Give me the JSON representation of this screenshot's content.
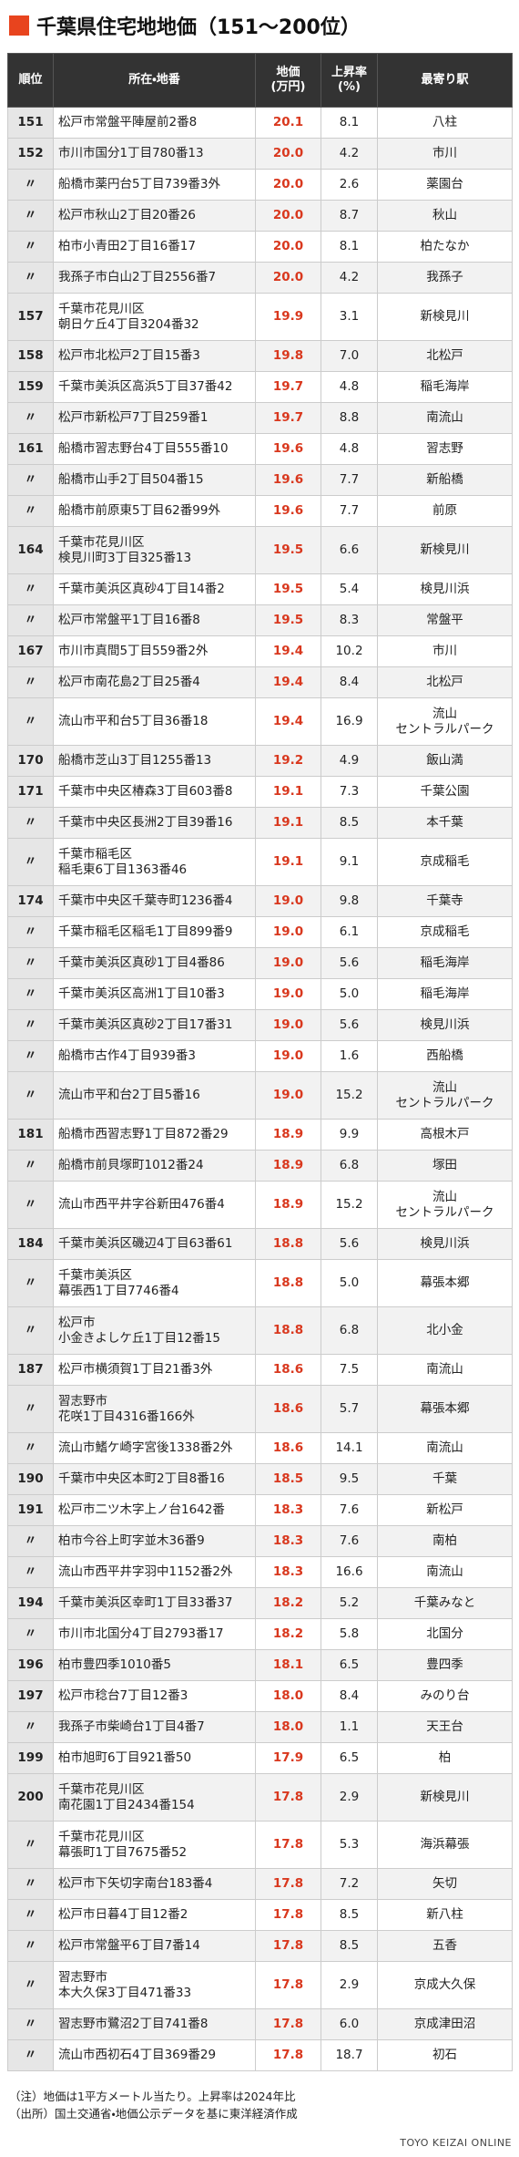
{
  "header": {
    "title": "千葉県住宅地地価（151〜200位）"
  },
  "table": {
    "columns": [
      "順位",
      "所在・地番",
      "地価\n(万円)",
      "上昇率\n(%)",
      "最寄り駅"
    ],
    "rows": [
      [
        "151",
        "松戸市常盤平陣屋前2番8",
        "20.1",
        "8.1",
        "八柱"
      ],
      [
        "152",
        "市川市国分1丁目780番13",
        "20.0",
        "4.2",
        "市川"
      ],
      [
        "〃",
        "船橋市薬円台5丁目739番3外",
        "20.0",
        "2.6",
        "薬園台"
      ],
      [
        "〃",
        "松戸市秋山2丁目20番26",
        "20.0",
        "8.7",
        "秋山"
      ],
      [
        "〃",
        "柏市小青田2丁目16番17",
        "20.0",
        "8.1",
        "柏たなか"
      ],
      [
        "〃",
        "我孫子市白山2丁目2556番7",
        "20.0",
        "4.2",
        "我孫子"
      ],
      [
        "157",
        "千葉市花見川区\n朝日ケ丘4丁目3204番32",
        "19.9",
        "3.1",
        "新検見川"
      ],
      [
        "158",
        "松戸市北松戸2丁目15番3",
        "19.8",
        "7.0",
        "北松戸"
      ],
      [
        "159",
        "千葉市美浜区高浜5丁目37番42",
        "19.7",
        "4.8",
        "稲毛海岸"
      ],
      [
        "〃",
        "松戸市新松戸7丁目259番1",
        "19.7",
        "8.8",
        "南流山"
      ],
      [
        "161",
        "船橋市習志野台4丁目555番10",
        "19.6",
        "4.8",
        "習志野"
      ],
      [
        "〃",
        "船橋市山手2丁目504番15",
        "19.6",
        "7.7",
        "新船橋"
      ],
      [
        "〃",
        "船橋市前原東5丁目62番99外",
        "19.6",
        "7.7",
        "前原"
      ],
      [
        "164",
        "千葉市花見川区\n検見川町3丁目325番13",
        "19.5",
        "6.6",
        "新検見川"
      ],
      [
        "〃",
        "千葉市美浜区真砂4丁目14番2",
        "19.5",
        "5.4",
        "検見川浜"
      ],
      [
        "〃",
        "松戸市常盤平1丁目16番8",
        "19.5",
        "8.3",
        "常盤平"
      ],
      [
        "167",
        "市川市真間5丁目559番2外",
        "19.4",
        "10.2",
        "市川"
      ],
      [
        "〃",
        "松戸市南花島2丁目25番4",
        "19.4",
        "8.4",
        "北松戸"
      ],
      [
        "〃",
        "流山市平和台5丁目36番18",
        "19.4",
        "16.9",
        "流山\nセントラルパーク"
      ],
      [
        "170",
        "船橋市芝山3丁目1255番13",
        "19.2",
        "4.9",
        "飯山満"
      ],
      [
        "171",
        "千葉市中央区椿森3丁目603番8",
        "19.1",
        "7.3",
        "千葉公園"
      ],
      [
        "〃",
        "千葉市中央区長洲2丁目39番16",
        "19.1",
        "8.5",
        "本千葉"
      ],
      [
        "〃",
        "千葉市稲毛区\n稲毛東6丁目1363番46",
        "19.1",
        "9.1",
        "京成稲毛"
      ],
      [
        "174",
        "千葉市中央区千葉寺町1236番4",
        "19.0",
        "9.8",
        "千葉寺"
      ],
      [
        "〃",
        "千葉市稲毛区稲毛1丁目899番9",
        "19.0",
        "6.1",
        "京成稲毛"
      ],
      [
        "〃",
        "千葉市美浜区真砂1丁目4番86",
        "19.0",
        "5.6",
        "稲毛海岸"
      ],
      [
        "〃",
        "千葉市美浜区高洲1丁目10番3",
        "19.0",
        "5.0",
        "稲毛海岸"
      ],
      [
        "〃",
        "千葉市美浜区真砂2丁目17番31",
        "19.0",
        "5.6",
        "検見川浜"
      ],
      [
        "〃",
        "船橋市古作4丁目939番3",
        "19.0",
        "1.6",
        "西船橋"
      ],
      [
        "〃",
        "流山市平和台2丁目5番16",
        "19.0",
        "15.2",
        "流山\nセントラルパーク"
      ],
      [
        "181",
        "船橋市西習志野1丁目872番29",
        "18.9",
        "9.9",
        "高根木戸"
      ],
      [
        "〃",
        "船橋市前貝塚町1012番24",
        "18.9",
        "6.8",
        "塚田"
      ],
      [
        "〃",
        "流山市西平井字谷新田476番4",
        "18.9",
        "15.2",
        "流山\nセントラルパーク"
      ],
      [
        "184",
        "千葉市美浜区磯辺4丁目63番61",
        "18.8",
        "5.6",
        "検見川浜"
      ],
      [
        "〃",
        "千葉市美浜区\n幕張西1丁目7746番4",
        "18.8",
        "5.0",
        "幕張本郷"
      ],
      [
        "〃",
        "松戸市\n小金きよしケ丘1丁目12番15",
        "18.8",
        "6.8",
        "北小金"
      ],
      [
        "187",
        "松戸市横須賀1丁目21番3外",
        "18.6",
        "7.5",
        "南流山"
      ],
      [
        "〃",
        "習志野市\n花咲1丁目4316番166外",
        "18.6",
        "5.7",
        "幕張本郷"
      ],
      [
        "〃",
        "流山市鰭ケ崎字宮後1338番2外",
        "18.6",
        "14.1",
        "南流山"
      ],
      [
        "190",
        "千葉市中央区本町2丁目8番16",
        "18.5",
        "9.5",
        "千葉"
      ],
      [
        "191",
        "松戸市二ツ木字上ノ台1642番",
        "18.3",
        "7.6",
        "新松戸"
      ],
      [
        "〃",
        "柏市今谷上町字並木36番9",
        "18.3",
        "7.6",
        "南柏"
      ],
      [
        "〃",
        "流山市西平井字羽中1152番2外",
        "18.3",
        "16.6",
        "南流山"
      ],
      [
        "194",
        "千葉市美浜区幸町1丁目33番37",
        "18.2",
        "5.2",
        "千葉みなと"
      ],
      [
        "〃",
        "市川市北国分4丁目2793番17",
        "18.2",
        "5.8",
        "北国分"
      ],
      [
        "196",
        "柏市豊四季1010番5",
        "18.1",
        "6.5",
        "豊四季"
      ],
      [
        "197",
        "松戸市稔台7丁目12番3",
        "18.0",
        "8.4",
        "みのり台"
      ],
      [
        "〃",
        "我孫子市柴崎台1丁目4番7",
        "18.0",
        "1.1",
        "天王台"
      ],
      [
        "199",
        "柏市旭町6丁目921番50",
        "17.9",
        "6.5",
        "柏"
      ],
      [
        "200",
        "千葉市花見川区\n南花園1丁目2434番154",
        "17.8",
        "2.9",
        "新検見川"
      ],
      [
        "〃",
        "千葉市花見川区\n幕張町1丁目7675番52",
        "17.8",
        "5.3",
        "海浜幕張"
      ],
      [
        "〃",
        "松戸市下矢切字南台183番4",
        "17.8",
        "7.2",
        "矢切"
      ],
      [
        "〃",
        "松戸市日暮4丁目12番2",
        "17.8",
        "8.5",
        "新八柱"
      ],
      [
        "〃",
        "松戸市常盤平6丁目7番14",
        "17.8",
        "8.5",
        "五香"
      ],
      [
        "〃",
        "習志野市\n本大久保3丁目471番33",
        "17.8",
        "2.9",
        "京成大久保"
      ],
      [
        "〃",
        "習志野市鷺沼2丁目741番8",
        "17.8",
        "6.0",
        "京成津田沼"
      ],
      [
        "〃",
        "流山市西初石4丁目369番29",
        "17.8",
        "18.7",
        "初石"
      ]
    ]
  },
  "footer": {
    "notes": [
      "（注）地価は1平方メートル当たり。上昇率は2024年比",
      "（出所）国土交通省・地価公示データを基に東洋経済作成"
    ],
    "credit": "TOYO KEIZAI ONLINE"
  }
}
